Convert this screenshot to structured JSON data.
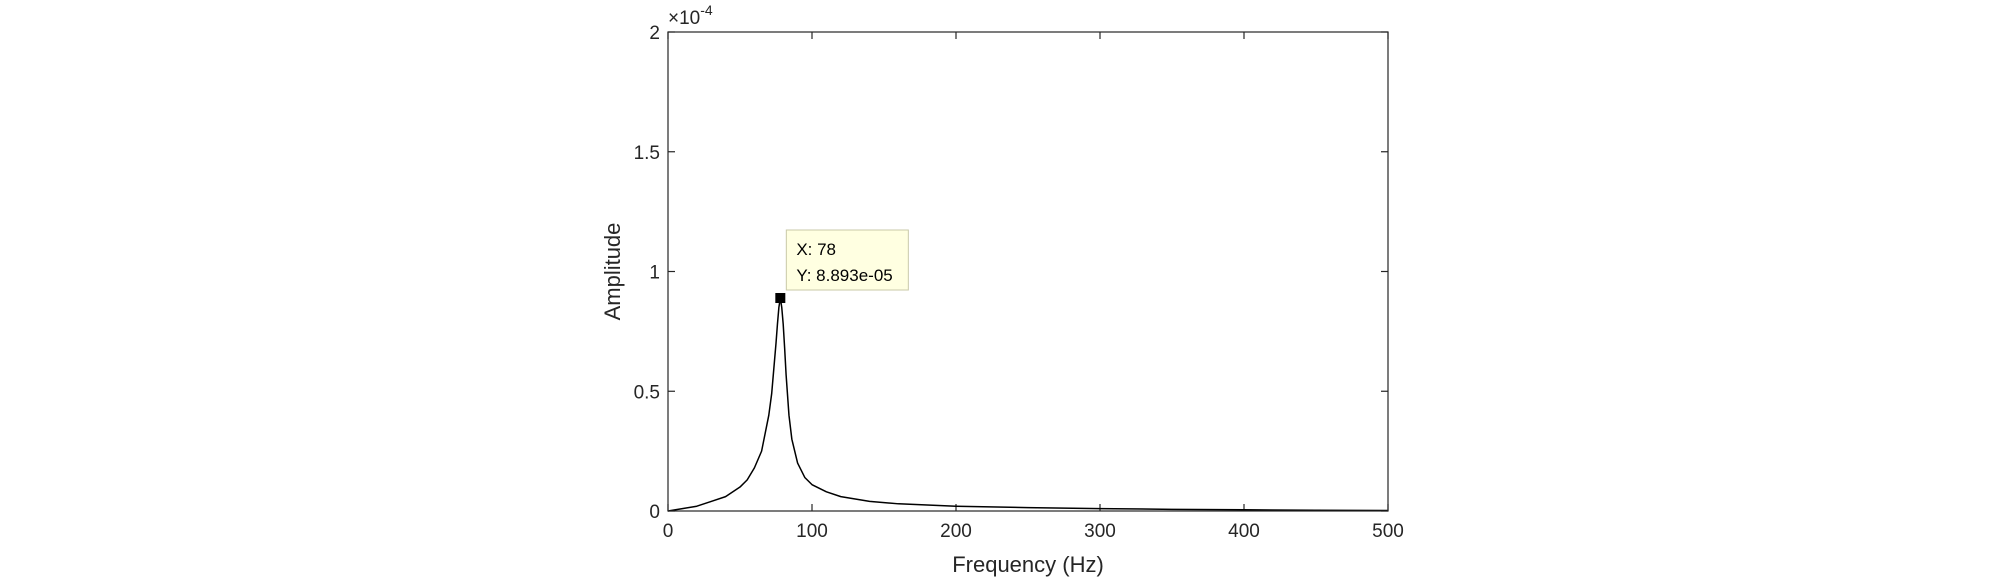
{
  "chart_data": {
    "type": "line",
    "xlabel": "Frequency (Hz)",
    "ylabel": "Amplitude",
    "xlim": [
      0,
      500
    ],
    "ylim": [
      0,
      2
    ],
    "y_exponent_label": "×10",
    "y_exponent_power": "-4",
    "x_ticks": [
      "0",
      "100",
      "200",
      "300",
      "400",
      "500"
    ],
    "y_ticks": [
      "0",
      "0.5",
      "1",
      "1.5",
      "2"
    ],
    "grid": false,
    "box": true,
    "series": [
      {
        "color": "#000000",
        "x": [
          0,
          10,
          20,
          30,
          40,
          50,
          55,
          60,
          65,
          70,
          72,
          74,
          75,
          76,
          77,
          78,
          79,
          80,
          81,
          82,
          84,
          86,
          90,
          95,
          100,
          110,
          120,
          140,
          160,
          200,
          250,
          300,
          350,
          400,
          450,
          500
        ],
        "y": [
          0,
          0.01,
          0.02,
          0.04,
          0.06,
          0.1,
          0.13,
          0.18,
          0.25,
          0.4,
          0.49,
          0.63,
          0.7,
          0.78,
          0.85,
          0.8893,
          0.85,
          0.78,
          0.68,
          0.57,
          0.4,
          0.3,
          0.2,
          0.14,
          0.11,
          0.08,
          0.06,
          0.04,
          0.03,
          0.02,
          0.014,
          0.01,
          0.007,
          0.005,
          0.003,
          0.002
        ]
      }
    ],
    "datatip": {
      "x": 78,
      "y": 0.8893,
      "label_x": "X: 78",
      "label_y": "Y: 8.893e-05"
    }
  }
}
